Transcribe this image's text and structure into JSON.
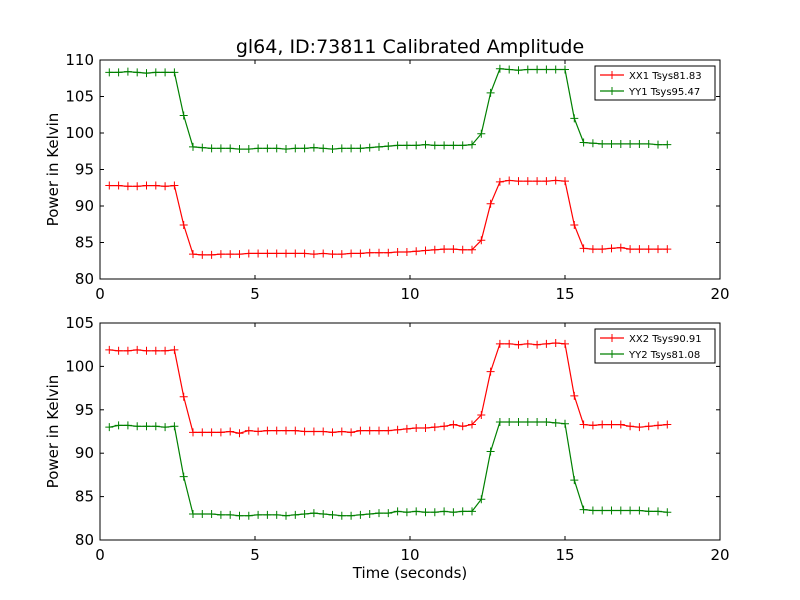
{
  "chart_data": {
    "type": "line",
    "title": "gl64, ID:73811 Calibrated Amplitude",
    "colors": {
      "red": "#ff0000",
      "green": "#008000"
    },
    "marker": "plus",
    "subplots": [
      {
        "ylabel": "Power in Kelvin",
        "xlabel": "",
        "xlim": [
          0,
          20
        ],
        "ylim": [
          80,
          110
        ],
        "xticks": [
          "0",
          "5",
          "10",
          "15",
          "20"
        ],
        "yticks": [
          "80",
          "85",
          "90",
          "95",
          "100",
          "105",
          "110"
        ],
        "legend_position": "top-right",
        "series": [
          {
            "name": "XX1 Tsys81.83",
            "color": "#ff0000",
            "x": [
              0.3,
              0.6,
              0.9,
              1.2,
              1.5,
              1.8,
              2.1,
              2.4,
              2.7,
              3.0,
              3.3,
              3.6,
              3.9,
              4.2,
              4.5,
              4.8,
              5.1,
              5.4,
              5.7,
              6.0,
              6.3,
              6.6,
              6.9,
              7.2,
              7.5,
              7.8,
              8.1,
              8.4,
              8.7,
              9.0,
              9.3,
              9.6,
              9.9,
              10.2,
              10.5,
              10.8,
              11.1,
              11.4,
              11.7,
              12.0,
              12.3,
              12.6,
              12.9,
              13.2,
              13.5,
              13.8,
              14.1,
              14.4,
              14.7,
              15.0,
              15.3,
              15.6,
              15.9,
              16.2,
              16.5,
              16.8,
              17.1,
              17.4,
              17.7,
              18.0,
              18.3
            ],
            "y": [
              92.8,
              92.8,
              92.7,
              92.7,
              92.8,
              92.8,
              92.7,
              92.8,
              87.4,
              83.4,
              83.3,
              83.3,
              83.4,
              83.4,
              83.4,
              83.5,
              83.5,
              83.5,
              83.5,
              83.5,
              83.5,
              83.5,
              83.4,
              83.5,
              83.4,
              83.4,
              83.5,
              83.5,
              83.6,
              83.6,
              83.6,
              83.7,
              83.7,
              83.8,
              83.9,
              84.0,
              84.1,
              84.1,
              84.0,
              84.0,
              85.3,
              90.3,
              93.3,
              93.5,
              93.4,
              93.4,
              93.4,
              93.4,
              93.5,
              93.4,
              87.4,
              84.2,
              84.1,
              84.1,
              84.2,
              84.3,
              84.1,
              84.1,
              84.1,
              84.1,
              84.1
            ]
          },
          {
            "name": "YY1 Tsys95.47",
            "color": "#008000",
            "x": [
              0.3,
              0.6,
              0.9,
              1.2,
              1.5,
              1.8,
              2.1,
              2.4,
              2.7,
              3.0,
              3.3,
              3.6,
              3.9,
              4.2,
              4.5,
              4.8,
              5.1,
              5.4,
              5.7,
              6.0,
              6.3,
              6.6,
              6.9,
              7.2,
              7.5,
              7.8,
              8.1,
              8.4,
              8.7,
              9.0,
              9.3,
              9.6,
              9.9,
              10.2,
              10.5,
              10.8,
              11.1,
              11.4,
              11.7,
              12.0,
              12.3,
              12.6,
              12.9,
              13.2,
              13.5,
              13.8,
              14.1,
              14.4,
              14.7,
              15.0,
              15.3,
              15.6,
              15.9,
              16.2,
              16.5,
              16.8,
              17.1,
              17.4,
              17.7,
              18.0,
              18.3
            ],
            "y": [
              108.3,
              108.3,
              108.4,
              108.3,
              108.2,
              108.3,
              108.3,
              108.3,
              102.4,
              98.1,
              98.0,
              97.9,
              97.9,
              97.9,
              97.8,
              97.8,
              97.9,
              97.9,
              97.9,
              97.8,
              97.9,
              97.9,
              98.0,
              97.9,
              97.8,
              97.9,
              97.9,
              97.9,
              98.0,
              98.1,
              98.2,
              98.3,
              98.3,
              98.3,
              98.4,
              98.3,
              98.3,
              98.3,
              98.3,
              98.4,
              99.9,
              105.5,
              108.8,
              108.7,
              108.6,
              108.7,
              108.7,
              108.7,
              108.7,
              108.7,
              102.0,
              98.7,
              98.6,
              98.5,
              98.5,
              98.5,
              98.5,
              98.5,
              98.5,
              98.4,
              98.4
            ]
          }
        ]
      },
      {
        "ylabel": "Power in Kelvin",
        "xlabel": "Time (seconds)",
        "xlim": [
          0,
          20
        ],
        "ylim": [
          80,
          105
        ],
        "xticks": [
          "0",
          "5",
          "10",
          "15",
          "20"
        ],
        "yticks": [
          "80",
          "85",
          "90",
          "95",
          "100",
          "105"
        ],
        "legend_position": "top-right",
        "series": [
          {
            "name": "XX2 Tsys90.91",
            "color": "#ff0000",
            "x": [
              0.3,
              0.6,
              0.9,
              1.2,
              1.5,
              1.8,
              2.1,
              2.4,
              2.7,
              3.0,
              3.3,
              3.6,
              3.9,
              4.2,
              4.5,
              4.8,
              5.1,
              5.4,
              5.7,
              6.0,
              6.3,
              6.6,
              6.9,
              7.2,
              7.5,
              7.8,
              8.1,
              8.4,
              8.7,
              9.0,
              9.3,
              9.6,
              9.9,
              10.2,
              10.5,
              10.8,
              11.1,
              11.4,
              11.7,
              12.0,
              12.3,
              12.6,
              12.9,
              13.2,
              13.5,
              13.8,
              14.1,
              14.4,
              14.7,
              15.0,
              15.3,
              15.6,
              15.9,
              16.2,
              16.5,
              16.8,
              17.1,
              17.4,
              17.7,
              18.0,
              18.3
            ],
            "y": [
              101.9,
              101.8,
              101.8,
              101.9,
              101.8,
              101.8,
              101.8,
              101.9,
              96.5,
              92.4,
              92.4,
              92.4,
              92.4,
              92.5,
              92.3,
              92.6,
              92.5,
              92.6,
              92.6,
              92.6,
              92.6,
              92.5,
              92.5,
              92.5,
              92.4,
              92.5,
              92.4,
              92.6,
              92.6,
              92.6,
              92.6,
              92.7,
              92.8,
              92.9,
              92.9,
              93.0,
              93.1,
              93.3,
              93.1,
              93.3,
              94.4,
              99.4,
              102.6,
              102.6,
              102.5,
              102.6,
              102.5,
              102.6,
              102.7,
              102.6,
              96.6,
              93.3,
              93.2,
              93.3,
              93.3,
              93.3,
              93.1,
              93.0,
              93.1,
              93.2,
              93.3
            ]
          },
          {
            "name": "YY2 Tsys81.08",
            "color": "#008000",
            "x": [
              0.3,
              0.6,
              0.9,
              1.2,
              1.5,
              1.8,
              2.1,
              2.4,
              2.7,
              3.0,
              3.3,
              3.6,
              3.9,
              4.2,
              4.5,
              4.8,
              5.1,
              5.4,
              5.7,
              6.0,
              6.3,
              6.6,
              6.9,
              7.2,
              7.5,
              7.8,
              8.1,
              8.4,
              8.7,
              9.0,
              9.3,
              9.6,
              9.9,
              10.2,
              10.5,
              10.8,
              11.1,
              11.4,
              11.7,
              12.0,
              12.3,
              12.6,
              12.9,
              13.2,
              13.5,
              13.8,
              14.1,
              14.4,
              14.7,
              15.0,
              15.3,
              15.6,
              15.9,
              16.2,
              16.5,
              16.8,
              17.1,
              17.4,
              17.7,
              18.0,
              18.3
            ],
            "y": [
              93.0,
              93.2,
              93.2,
              93.1,
              93.1,
              93.1,
              93.0,
              93.1,
              87.3,
              83.0,
              83.0,
              83.0,
              82.9,
              82.9,
              82.8,
              82.8,
              82.9,
              82.9,
              82.9,
              82.8,
              82.9,
              83.0,
              83.1,
              83.0,
              82.9,
              82.8,
              82.8,
              82.9,
              83.0,
              83.1,
              83.1,
              83.3,
              83.2,
              83.3,
              83.2,
              83.2,
              83.3,
              83.2,
              83.3,
              83.3,
              84.7,
              90.2,
              93.6,
              93.6,
              93.6,
              93.6,
              93.6,
              93.6,
              93.5,
              93.4,
              86.9,
              83.5,
              83.4,
              83.4,
              83.4,
              83.4,
              83.4,
              83.4,
              83.3,
              83.3,
              83.2
            ]
          }
        ]
      }
    ]
  }
}
